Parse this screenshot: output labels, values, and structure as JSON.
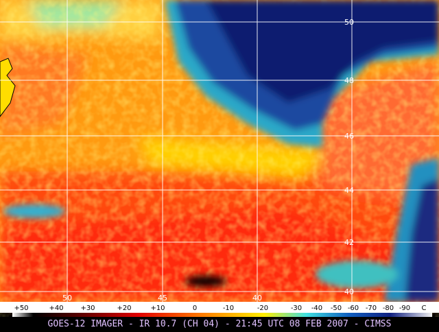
{
  "map": {
    "lat_labels": [
      "50",
      "48",
      "46",
      "44",
      "42",
      "40"
    ],
    "lon_labels": [
      "50",
      "45",
      "40"
    ],
    "scale_labels": [
      "+50",
      "+40",
      "+30",
      "+20",
      "+10",
      "0",
      "-10",
      "-20",
      "-30",
      "-40",
      "-50",
      "-60",
      "-70",
      "-80",
      "-90"
    ],
    "scale_unit": "C",
    "caption": "GOES-12 IMAGER - IR 10.7 (CH 04) - 21:45 UTC 08 FEB 2007 - CIMSS"
  }
}
